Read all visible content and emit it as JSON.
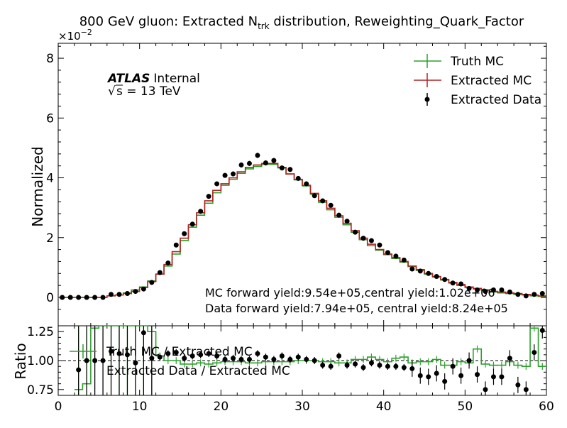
{
  "chart_data": {
    "type": "line",
    "title": "800 GeV gluon: Extracted N",
    "title_sub": "trk",
    "title_suffix": " distribution, Reweighting_Quark_Factor",
    "exponent_label": "×10",
    "exponent_power": "−2",
    "atlas_label": "ATLAS",
    "atlas_status": "Internal",
    "energy_prefix": "s",
    "energy_value": " = 13 TeV",
    "annotations": [
      "MC forward yield:9.54e+05,central yield:1.02e+06",
      "Data forward yield:7.94e+05, central yield:8.24e+05"
    ],
    "legend_position": "top-right",
    "ratio_legend_position": "top-left",
    "main_panel": {
      "ylabel": "Normalized",
      "xlim": [
        0,
        60
      ],
      "ylim": [
        -0.0095,
        0.085
      ],
      "yticks": [
        0,
        0.02,
        0.04,
        0.06,
        0.08
      ],
      "ytick_labels": [
        "0",
        "2",
        "4",
        "6",
        "8"
      ],
      "bin_edges": [
        0,
        1,
        2,
        3,
        4,
        5,
        6,
        7,
        8,
        9,
        10,
        11,
        12,
        13,
        14,
        15,
        16,
        17,
        18,
        19,
        20,
        21,
        22,
        23,
        24,
        25,
        26,
        27,
        28,
        29,
        30,
        31,
        32,
        33,
        34,
        35,
        36,
        37,
        38,
        39,
        40,
        41,
        42,
        43,
        44,
        45,
        46,
        47,
        48,
        49,
        50,
        51,
        52,
        53,
        54,
        55,
        56,
        57,
        58,
        59,
        60
      ],
      "series": [
        {
          "name": "Truth MC",
          "color": "#2ca02c",
          "style": "step",
          "values": [
            0,
            0,
            0,
            0,
            0,
            0,
            0.0005,
            0.0008,
            0.0015,
            0.0025,
            0.0035,
            0.0055,
            0.0078,
            0.0105,
            0.0145,
            0.019,
            0.0235,
            0.0275,
            0.0315,
            0.035,
            0.0375,
            0.0395,
            0.0415,
            0.043,
            0.0438,
            0.0445,
            0.0445,
            0.0433,
            0.0413,
            0.0393,
            0.0373,
            0.0345,
            0.0318,
            0.0293,
            0.0268,
            0.0243,
            0.0218,
            0.0193,
            0.0173,
            0.0158,
            0.0143,
            0.013,
            0.0118,
            0.0103,
            0.009,
            0.0078,
            0.0068,
            0.0058,
            0.0048,
            0.004,
            0.0033,
            0.0028,
            0.0023,
            0.0018,
            0.0015,
            0.0013,
            0.001,
            0.0008,
            0.0005,
            0.0003
          ]
        },
        {
          "name": "Extracted MC",
          "color": "#b22222",
          "style": "step",
          "values": [
            0,
            0,
            0,
            0,
            0,
            0,
            0.0005,
            0.0008,
            0.0013,
            0.002,
            0.0033,
            0.0053,
            0.0078,
            0.011,
            0.0153,
            0.0198,
            0.0243,
            0.0283,
            0.0323,
            0.0358,
            0.038,
            0.04,
            0.042,
            0.0435,
            0.0443,
            0.0448,
            0.0448,
            0.0435,
            0.0413,
            0.0395,
            0.0375,
            0.0348,
            0.0323,
            0.0298,
            0.0273,
            0.0248,
            0.0223,
            0.0198,
            0.0178,
            0.016,
            0.0145,
            0.0133,
            0.012,
            0.0105,
            0.0093,
            0.008,
            0.007,
            0.006,
            0.005,
            0.0043,
            0.0035,
            0.003,
            0.0025,
            0.002,
            0.0018,
            0.0015,
            0.0013,
            0.001,
            0.0008,
            0.0005
          ]
        },
        {
          "name": "Extracted Data",
          "color": "#000000",
          "style": "errorbar",
          "values": [
            0,
            0,
            0,
            0,
            0,
            0,
            0.001,
            0.001,
            0.0013,
            0.002,
            0.0028,
            0.005,
            0.0083,
            0.0115,
            0.0175,
            0.0213,
            0.0245,
            0.0288,
            0.0338,
            0.038,
            0.0408,
            0.0413,
            0.0443,
            0.0448,
            0.0475,
            0.045,
            0.0458,
            0.0433,
            0.0428,
            0.0398,
            0.038,
            0.034,
            0.0323,
            0.0308,
            0.0275,
            0.0255,
            0.0218,
            0.0198,
            0.019,
            0.0175,
            0.015,
            0.0138,
            0.0125,
            0.0095,
            0.0088,
            0.008,
            0.007,
            0.006,
            0.0048,
            0.0045,
            0.003,
            0.0025,
            0.002,
            0.0025,
            0.0025,
            0.0018,
            0.001,
            0.0005,
            0.001,
            0.0013
          ]
        }
      ]
    },
    "ratio_panel": {
      "ylabel": "Ratio",
      "xlabel": "",
      "xlim": [
        0,
        60
      ],
      "ylim": [
        0.7,
        1.3
      ],
      "yticks": [
        0.75,
        1.0,
        1.25
      ],
      "ytick_labels": [
        "0.75",
        "1.00",
        "1.25"
      ],
      "xticks": [
        0,
        10,
        20,
        30,
        40,
        50,
        60
      ],
      "xtick_labels": [
        "0",
        "10",
        "20",
        "30",
        "40",
        "50",
        "60"
      ],
      "reference_line": 1.0,
      "series": [
        {
          "name": "Truth MC / Extracted MC",
          "color": "#2ca02c",
          "style": "step",
          "start_bin": 2,
          "values": [
            0.75,
            0.8,
            1.28,
            1.3,
            1.3,
            1.3,
            1.3,
            1.3,
            1.3,
            1.25,
            1.04,
            1.0,
            1.0,
            0.97,
            0.97,
            0.98,
            0.97,
            0.98,
            0.99,
            0.99,
            0.99,
            0.98,
            0.98,
            0.99,
            0.99,
            0.99,
            0.99,
            1.0,
            1.0,
            1.0,
            0.99,
            0.99,
            0.98,
            0.98,
            1.01,
            1.01,
            1.03,
            1.01,
            0.99,
            1.02,
            1.03,
            0.98,
            0.99,
            0.99,
            1.01,
            0.96,
            0.96,
            0.99,
            0.98,
            1.1,
            0.97,
            0.96,
            0.96,
            0.99,
            0.96,
            0.95,
            1.28,
            0.95
          ]
        },
        {
          "name": "Extracted Data / Extracted MC",
          "color": "#000000",
          "style": "errorbar",
          "start_bin": 2,
          "values": [
            0.92,
            1.0,
            1.0,
            1.0,
            1.08,
            1.06,
            1.05,
            0.98,
            1.24,
            1.02,
            1.03,
            1.06,
            1.07,
            1.02,
            1.04,
            1.05,
            1.06,
            1.04,
            1.01,
            1.02,
            1.01,
            1.01,
            1.06,
            1.03,
            1.01,
            1.04,
            1.01,
            1.03,
            1.01,
            1.0,
            0.96,
            0.95,
            1.04,
            0.96,
            0.97,
            0.94,
            0.98,
            0.96,
            0.95,
            0.95,
            0.94,
            0.93,
            0.87,
            0.86,
            0.89,
            0.82,
            0.95,
            0.87,
            1.0,
            0.88,
            0.75,
            0.86,
            0.86,
            1.02,
            0.79,
            0.75,
            1.07,
            1.26
          ]
        }
      ]
    }
  }
}
